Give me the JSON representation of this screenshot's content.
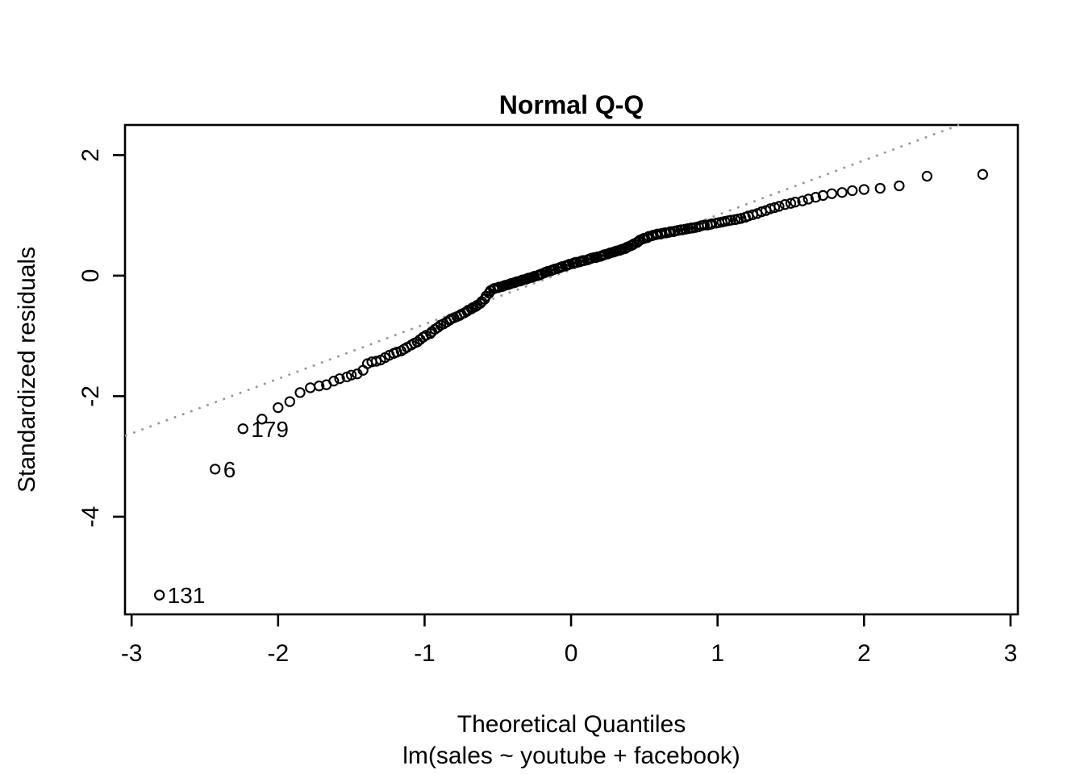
{
  "chart": {
    "title": "Normal Q-Q",
    "xlabel": "Theoretical Quantiles",
    "subtitle": "lm(sales ~ youtube + facebook)",
    "ylabel": "Standardized residuals"
  },
  "chart_data": {
    "type": "scatter",
    "title": "Normal Q-Q",
    "xlabel": "Theoretical Quantiles",
    "subtitle": "lm(sales ~ youtube + facebook)",
    "ylabel": "Standardized residuals",
    "xlim": [
      -3.045,
      3.05
    ],
    "ylim": [
      -5.62,
      2.5
    ],
    "x_ticks": [
      -3,
      -2,
      -1,
      0,
      1,
      2,
      3
    ],
    "y_ticks": [
      -4,
      -2,
      0,
      2
    ],
    "grid": false,
    "point_color": "#000000",
    "reference_line": {
      "slope": 0.906,
      "intercept": 0.1,
      "style": "dotted",
      "color": "#979797"
    },
    "labeled_points": [
      {
        "label": "131",
        "x": -2.81,
        "y": -5.3
      },
      {
        "label": "6",
        "x": -2.43,
        "y": -3.21
      },
      {
        "label": "179",
        "x": -2.24,
        "y": -2.54
      }
    ],
    "points": [
      [
        -2.81,
        -5.3
      ],
      [
        -2.43,
        -3.21
      ],
      [
        -2.24,
        -2.54
      ],
      [
        -2.11,
        -2.38
      ],
      [
        -2.0,
        -2.19
      ],
      [
        -1.92,
        -2.09
      ],
      [
        -1.85,
        -1.94
      ],
      [
        -1.78,
        -1.86
      ],
      [
        -1.72,
        -1.83
      ],
      [
        -1.67,
        -1.81
      ],
      [
        -1.62,
        -1.75
      ],
      [
        -1.58,
        -1.71
      ],
      [
        -1.53,
        -1.68
      ],
      [
        -1.5,
        -1.65
      ],
      [
        -1.46,
        -1.63
      ],
      [
        -1.42,
        -1.57
      ],
      [
        -1.39,
        -1.46
      ],
      [
        -1.36,
        -1.43
      ],
      [
        -1.33,
        -1.42
      ],
      [
        -1.3,
        -1.4
      ],
      [
        -1.27,
        -1.36
      ],
      [
        -1.24,
        -1.32
      ],
      [
        -1.21,
        -1.29
      ],
      [
        -1.19,
        -1.27
      ],
      [
        -1.16,
        -1.25
      ],
      [
        -1.14,
        -1.22
      ],
      [
        -1.12,
        -1.19
      ],
      [
        -1.09,
        -1.15
      ],
      [
        -1.07,
        -1.12
      ],
      [
        -1.05,
        -1.1
      ],
      [
        -1.03,
        -1.06
      ],
      [
        -1.01,
        -1.02
      ],
      [
        -0.99,
        -0.99
      ],
      [
        -0.96,
        -0.96
      ],
      [
        -0.95,
        -0.93
      ],
      [
        -0.93,
        -0.89
      ],
      [
        -0.91,
        -0.86
      ],
      [
        -0.89,
        -0.82
      ],
      [
        -0.87,
        -0.8
      ],
      [
        -0.85,
        -0.77
      ],
      [
        -0.83,
        -0.74
      ],
      [
        -0.82,
        -0.72
      ],
      [
        -0.8,
        -0.7
      ],
      [
        -0.78,
        -0.68
      ],
      [
        -0.76,
        -0.66
      ],
      [
        -0.75,
        -0.64
      ],
      [
        -0.73,
        -0.62
      ],
      [
        -0.71,
        -0.59
      ],
      [
        -0.7,
        -0.57
      ],
      [
        -0.68,
        -0.55
      ],
      [
        -0.67,
        -0.53
      ],
      [
        -0.65,
        -0.51
      ],
      [
        -0.64,
        -0.49
      ],
      [
        -0.62,
        -0.46
      ],
      [
        -0.61,
        -0.43
      ],
      [
        -0.59,
        -0.39
      ],
      [
        -0.58,
        -0.34
      ],
      [
        -0.56,
        -0.29
      ],
      [
        -0.55,
        -0.25
      ],
      [
        -0.53,
        -0.22
      ],
      [
        -0.52,
        -0.21
      ],
      [
        -0.5,
        -0.2
      ],
      [
        -0.49,
        -0.19
      ],
      [
        -0.47,
        -0.18
      ],
      [
        -0.46,
        -0.17
      ],
      [
        -0.45,
        -0.16
      ],
      [
        -0.43,
        -0.15
      ],
      [
        -0.42,
        -0.14
      ],
      [
        -0.41,
        -0.13
      ],
      [
        -0.39,
        -0.12
      ],
      [
        -0.38,
        -0.11
      ],
      [
        -0.37,
        -0.1
      ],
      [
        -0.35,
        -0.09
      ],
      [
        -0.34,
        -0.08
      ],
      [
        -0.33,
        -0.07
      ],
      [
        -0.31,
        -0.06
      ],
      [
        -0.3,
        -0.05
      ],
      [
        -0.29,
        -0.04
      ],
      [
        -0.27,
        -0.03
      ],
      [
        -0.26,
        -0.02
      ],
      [
        -0.25,
        -0.01
      ],
      [
        -0.23,
        0.0
      ],
      [
        -0.22,
        0.01
      ],
      [
        -0.21,
        0.02
      ],
      [
        -0.2,
        0.03
      ],
      [
        -0.18,
        0.05
      ],
      [
        -0.17,
        0.06
      ],
      [
        -0.16,
        0.07
      ],
      [
        -0.14,
        0.08
      ],
      [
        -0.13,
        0.09
      ],
      [
        -0.12,
        0.1
      ],
      [
        -0.11,
        0.11
      ],
      [
        -0.09,
        0.12
      ],
      [
        -0.08,
        0.13
      ],
      [
        -0.07,
        0.14
      ],
      [
        -0.06,
        0.15
      ],
      [
        -0.04,
        0.16
      ],
      [
        -0.03,
        0.17
      ],
      [
        -0.02,
        0.18
      ],
      [
        -0.01,
        0.19
      ],
      [
        0.01,
        0.2
      ],
      [
        0.02,
        0.21
      ],
      [
        0.03,
        0.22
      ],
      [
        0.04,
        0.22
      ],
      [
        0.06,
        0.23
      ],
      [
        0.07,
        0.24
      ],
      [
        0.08,
        0.25
      ],
      [
        0.09,
        0.25
      ],
      [
        0.11,
        0.26
      ],
      [
        0.12,
        0.27
      ],
      [
        0.13,
        0.28
      ],
      [
        0.14,
        0.29
      ],
      [
        0.16,
        0.3
      ],
      [
        0.17,
        0.3
      ],
      [
        0.18,
        0.31
      ],
      [
        0.2,
        0.32
      ],
      [
        0.21,
        0.33
      ],
      [
        0.22,
        0.34
      ],
      [
        0.23,
        0.35
      ],
      [
        0.25,
        0.36
      ],
      [
        0.26,
        0.37
      ],
      [
        0.27,
        0.38
      ],
      [
        0.29,
        0.39
      ],
      [
        0.3,
        0.4
      ],
      [
        0.31,
        0.41
      ],
      [
        0.33,
        0.42
      ],
      [
        0.34,
        0.43
      ],
      [
        0.35,
        0.44
      ],
      [
        0.37,
        0.45
      ],
      [
        0.38,
        0.47
      ],
      [
        0.39,
        0.48
      ],
      [
        0.41,
        0.5
      ],
      [
        0.42,
        0.51
      ],
      [
        0.43,
        0.53
      ],
      [
        0.45,
        0.55
      ],
      [
        0.46,
        0.57
      ],
      [
        0.47,
        0.59
      ],
      [
        0.49,
        0.61
      ],
      [
        0.5,
        0.62
      ],
      [
        0.52,
        0.63
      ],
      [
        0.53,
        0.65
      ],
      [
        0.55,
        0.66
      ],
      [
        0.56,
        0.67
      ],
      [
        0.58,
        0.68
      ],
      [
        0.59,
        0.69
      ],
      [
        0.61,
        0.69
      ],
      [
        0.62,
        0.7
      ],
      [
        0.64,
        0.71
      ],
      [
        0.65,
        0.71
      ],
      [
        0.67,
        0.72
      ],
      [
        0.68,
        0.73
      ],
      [
        0.7,
        0.73
      ],
      [
        0.71,
        0.74
      ],
      [
        0.73,
        0.75
      ],
      [
        0.75,
        0.76
      ],
      [
        0.76,
        0.76
      ],
      [
        0.78,
        0.77
      ],
      [
        0.8,
        0.78
      ],
      [
        0.82,
        0.79
      ],
      [
        0.83,
        0.79
      ],
      [
        0.85,
        0.8
      ],
      [
        0.87,
        0.81
      ],
      [
        0.89,
        0.83
      ],
      [
        0.91,
        0.84
      ],
      [
        0.93,
        0.84
      ],
      [
        0.95,
        0.85
      ],
      [
        0.96,
        0.86
      ],
      [
        0.99,
        0.87
      ],
      [
        1.01,
        0.88
      ],
      [
        1.03,
        0.89
      ],
      [
        1.05,
        0.9
      ],
      [
        1.07,
        0.91
      ],
      [
        1.09,
        0.92
      ],
      [
        1.12,
        0.93
      ],
      [
        1.14,
        0.94
      ],
      [
        1.16,
        0.95
      ],
      [
        1.19,
        0.97
      ],
      [
        1.21,
        0.99
      ],
      [
        1.24,
        1.01
      ],
      [
        1.27,
        1.03
      ],
      [
        1.3,
        1.06
      ],
      [
        1.33,
        1.08
      ],
      [
        1.36,
        1.11
      ],
      [
        1.39,
        1.13
      ],
      [
        1.42,
        1.15
      ],
      [
        1.46,
        1.18
      ],
      [
        1.5,
        1.2
      ],
      [
        1.53,
        1.22
      ],
      [
        1.58,
        1.24
      ],
      [
        1.62,
        1.27
      ],
      [
        1.67,
        1.3
      ],
      [
        1.72,
        1.33
      ],
      [
        1.78,
        1.36
      ],
      [
        1.85,
        1.38
      ],
      [
        1.92,
        1.41
      ],
      [
        2.0,
        1.43
      ],
      [
        2.11,
        1.45
      ],
      [
        2.24,
        1.49
      ],
      [
        2.43,
        1.65
      ],
      [
        2.81,
        1.68
      ]
    ]
  }
}
